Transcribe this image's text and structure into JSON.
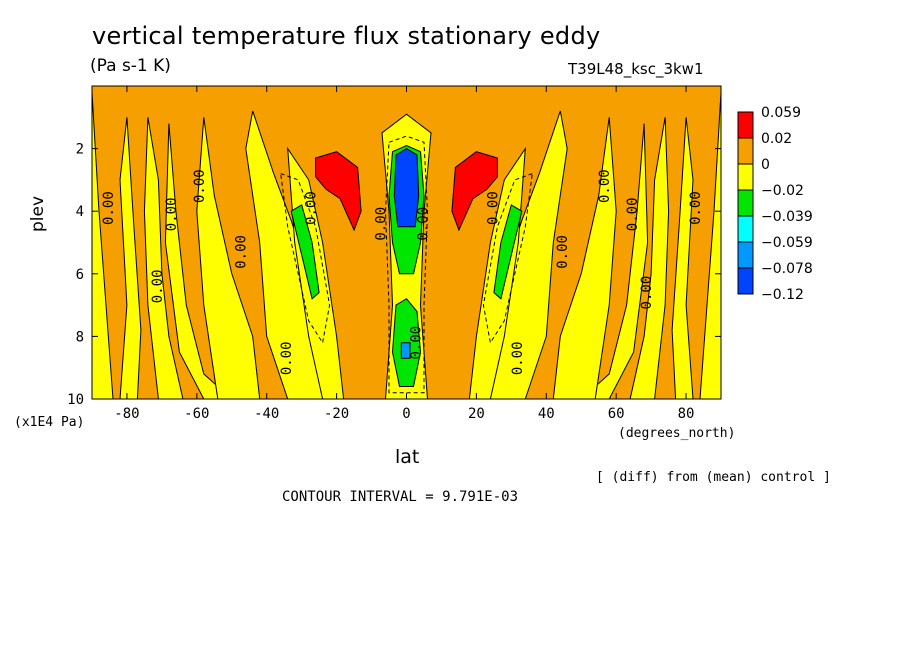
{
  "chart_data": {
    "type": "heatmap",
    "title": "vertical temperature flux stationary eddy",
    "units": "(Pa s-1 K)",
    "run_name": "T39L48_ksc_3kw1",
    "xlabel": "lat",
    "x_unit": "(degrees_north)",
    "ylabel": "plev",
    "y_unit": "(x1E4 Pa)",
    "xlim": [
      -90,
      90
    ],
    "ylim": [
      10,
      0
    ],
    "x_ticks": [
      "-80",
      "-60",
      "-40",
      "-20",
      "0",
      "20",
      "40",
      "60",
      "80"
    ],
    "y_ticks": [
      "2",
      "4",
      "6",
      "8",
      "10"
    ],
    "contour_label": "0.00",
    "footnote": "[ (diff) from (mean) control ]",
    "contour_interval": "CONTOUR INTERVAL = 9.791E-03",
    "colorbar": {
      "labels": [
        "0.059",
        "0.02",
        "0",
        "−0.02",
        "−0.039",
        "−0.059",
        "−0.078",
        "−0.12"
      ],
      "colors": [
        "#ff0000",
        "#f5a000",
        "#ffff00",
        "#00e600",
        "#00ffff",
        "#0099ff",
        "#0044ff"
      ]
    },
    "fill_colors": {
      "positive": "#f5a000",
      "weak_negative": "#ffff00",
      "negative": "#00e600",
      "strong_positive": "#ff0000",
      "strong_negative": "#0044ff",
      "very_negative": "#0099ff"
    }
  }
}
